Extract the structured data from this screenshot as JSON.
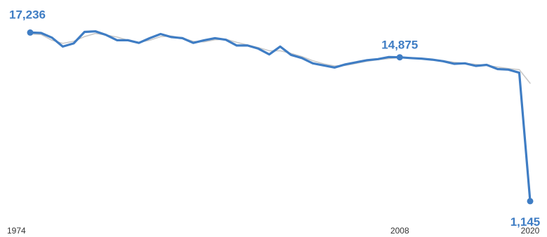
{
  "chart_data": {
    "type": "line",
    "title": "",
    "xlabel": "",
    "ylabel": "",
    "xlim": [
      1974,
      2020
    ],
    "ylim": [
      0,
      18000
    ],
    "grid": false,
    "legend": "none",
    "tick_labels": [
      "1974",
      "2008",
      "2020"
    ],
    "annotations": [
      {
        "x": 1974,
        "y": 17236,
        "label": "17,236"
      },
      {
        "x": 2008,
        "y": 14875,
        "label": "14,875"
      },
      {
        "x": 2020,
        "y": 1145,
        "label": "1,145"
      }
    ],
    "series": [
      {
        "role": "primary",
        "color": "#3F7DC4",
        "x": [
          1974,
          1975,
          1976,
          1977,
          1978,
          1979,
          1980,
          1981,
          1982,
          1983,
          1984,
          1985,
          1986,
          1987,
          1988,
          1989,
          1990,
          1991,
          1992,
          1993,
          1994,
          1995,
          1996,
          1997,
          1998,
          1999,
          2000,
          2001,
          2002,
          2003,
          2004,
          2005,
          2006,
          2007,
          2008,
          2009,
          2010,
          2011,
          2012,
          2013,
          2014,
          2015,
          2016,
          2017,
          2018,
          2019,
          2020
        ],
        "y": [
          17236,
          17200,
          16750,
          15900,
          16200,
          17300,
          17350,
          17000,
          16500,
          16500,
          16250,
          16700,
          17100,
          16800,
          16700,
          16250,
          16500,
          16700,
          16550,
          16000,
          16000,
          15700,
          15150,
          15900,
          15100,
          14800,
          14300,
          14100,
          13900,
          14200,
          14400,
          14600,
          14700,
          14900,
          14875,
          14800,
          14750,
          14650,
          14500,
          14250,
          14300,
          14050,
          14150,
          13750,
          13700,
          13400,
          1145
        ]
      },
      {
        "role": "trend",
        "color": "#C9C9C9",
        "x": [
          1974,
          1975,
          1976,
          1977,
          1978,
          1979,
          1980,
          1981,
          1982,
          1983,
          1984,
          1985,
          1986,
          1987,
          1988,
          1989,
          1990,
          1991,
          1992,
          1993,
          1994,
          1995,
          1996,
          1997,
          1998,
          1999,
          2000,
          2001,
          2002,
          2003,
          2004,
          2005,
          2006,
          2007,
          2008,
          2009,
          2010,
          2011,
          2012,
          2013,
          2014,
          2015,
          2016,
          2017,
          2018,
          2019,
          2020
        ],
        "y": [
          17100,
          17050,
          16500,
          16200,
          16400,
          16850,
          17150,
          17000,
          16800,
          16500,
          16300,
          16500,
          16850,
          16900,
          16700,
          16400,
          16350,
          16550,
          16600,
          16300,
          16050,
          15800,
          15500,
          15500,
          15250,
          14950,
          14550,
          14250,
          14050,
          14100,
          14300,
          14500,
          14650,
          14750,
          14850,
          14850,
          14750,
          14650,
          14550,
          14400,
          14300,
          14200,
          14100,
          13950,
          13800,
          13700,
          12400
        ]
      }
    ]
  }
}
